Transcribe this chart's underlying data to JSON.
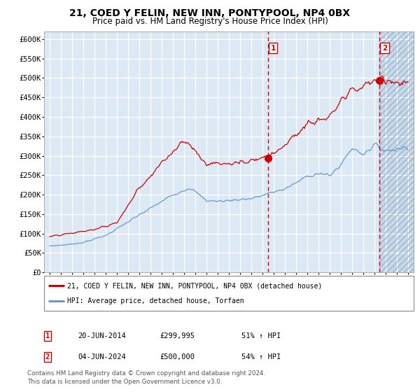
{
  "title": "21, COED Y FELIN, NEW INN, PONTYPOOL, NP4 0BX",
  "subtitle": "Price paid vs. HM Land Registry's House Price Index (HPI)",
  "line1_label": "21, COED Y FELIN, NEW INN, PONTYPOOL, NP4 0BX (detached house)",
  "line2_label": "HPI: Average price, detached house, Torfaen",
  "marker1_date": "20-JUN-2014",
  "marker1_price": "£299,995",
  "marker1_pct": "51% ↑ HPI",
  "marker2_date": "04-JUN-2024",
  "marker2_price": "£500,000",
  "marker2_pct": "54% ↑ HPI",
  "marker1_year": 2014.47,
  "marker2_year": 2024.43,
  "ylim": [
    0,
    620000
  ],
  "xlim_start": 1994.5,
  "xlim_end": 2027.5,
  "yticks": [
    0,
    50000,
    100000,
    150000,
    200000,
    250000,
    300000,
    350000,
    400000,
    450000,
    500000,
    550000,
    600000
  ],
  "ytick_labels": [
    "£0",
    "£50K",
    "£100K",
    "£150K",
    "£200K",
    "£250K",
    "£300K",
    "£350K",
    "£400K",
    "£450K",
    "£500K",
    "£550K",
    "£600K"
  ],
  "xtick_years": [
    1995,
    1996,
    1997,
    1998,
    1999,
    2000,
    2001,
    2002,
    2003,
    2004,
    2005,
    2006,
    2007,
    2008,
    2009,
    2010,
    2011,
    2012,
    2013,
    2014,
    2015,
    2016,
    2017,
    2018,
    2019,
    2020,
    2021,
    2022,
    2023,
    2024,
    2025,
    2026,
    2027
  ],
  "red_color": "#cc0000",
  "blue_color": "#6699cc",
  "bg_color": "#dce9f5",
  "hatch_bg_color": "#c8d8ea",
  "grid_color": "#ffffff",
  "footnote_line1": "Contains HM Land Registry data © Crown copyright and database right 2024.",
  "footnote_line2": "This data is licensed under the Open Government Licence v3.0."
}
